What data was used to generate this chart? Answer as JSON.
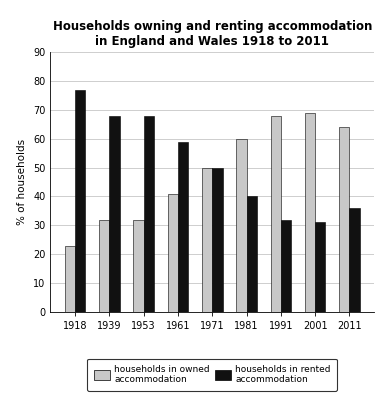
{
  "title": "Households owning and renting accommodation\nin England and Wales 1918 to 2011",
  "years": [
    "1918",
    "1939",
    "1953",
    "1961",
    "1971",
    "1981",
    "1991",
    "2001",
    "2011"
  ],
  "owned": [
    23,
    32,
    32,
    41,
    50,
    60,
    68,
    69,
    64
  ],
  "rented": [
    77,
    68,
    68,
    59,
    50,
    40,
    32,
    31,
    36
  ],
  "owned_color": "#c8c8c8",
  "rented_color": "#111111",
  "ylabel": "% of households",
  "ylim": [
    0,
    90
  ],
  "yticks": [
    0,
    10,
    20,
    30,
    40,
    50,
    60,
    70,
    80,
    90
  ],
  "legend_owned": "households in owned\naccommodation",
  "legend_rented": "households in rented\naccommodation",
  "bar_width": 0.3,
  "title_fontsize": 8.5,
  "axis_fontsize": 7.5,
  "tick_fontsize": 7,
  "legend_fontsize": 6.5
}
